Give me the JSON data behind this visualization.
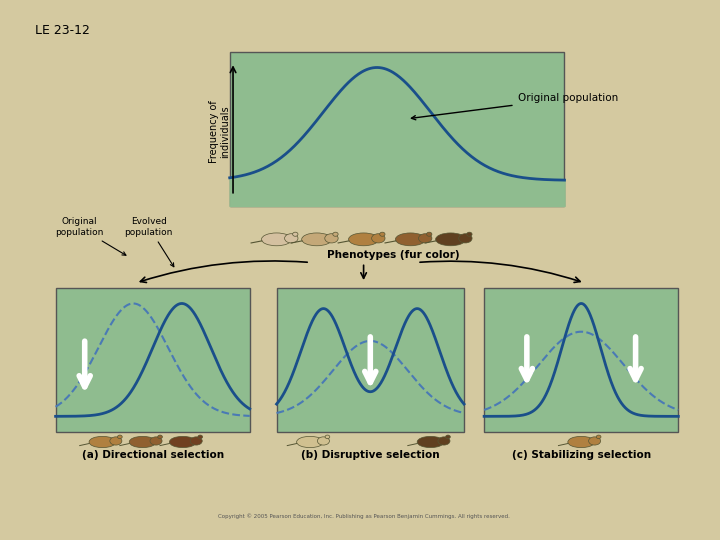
{
  "title_label": "LE 23-12",
  "background_outer": "#d4c9a0",
  "background_inner": "#ffffff",
  "panel_bg": "#8fbc8f",
  "curve_color": "#1a4f8a",
  "curve_lw": 2.0,
  "dashed_color": "#4a7ab5",
  "dashed_lw": 1.5,
  "arrow_color": "#ffffff",
  "freq_label": "Frequency of\nindividuals",
  "orig_pop_label": "Original population",
  "phenotypes_label": "Phenotypes (fur color)",
  "orig_pop_box_label": "Original\npopulation",
  "evolved_pop_label": "Evolved\npopulation",
  "dir_label": "(a) Directional selection",
  "dis_label": "(b) Disruptive selection",
  "stab_label": "(c) Stabilizing selection",
  "copyright": "Copyright © 2005 Pearson Education, Inc. Publishing as Pearson Benjamin Cummings. All rights reserved.",
  "top_panel_color": "#7dba8c"
}
